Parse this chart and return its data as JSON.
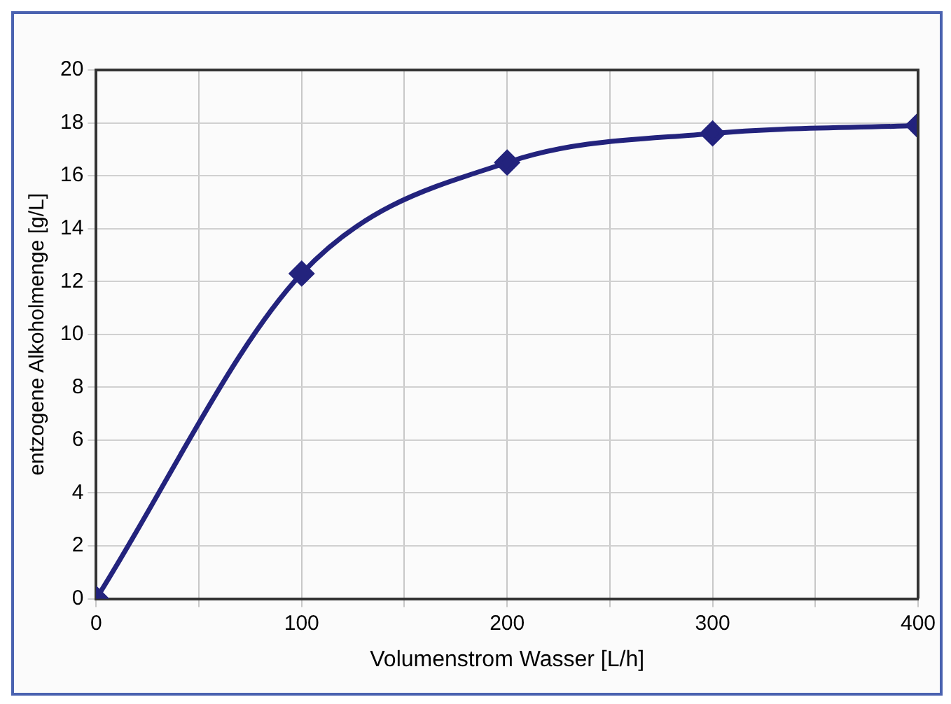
{
  "chart_data": {
    "type": "line",
    "xlabel": "Volumenstrom Wasser [L/h]",
    "ylabel": "entzogene Alkoholmenge [g/L]",
    "x": [
      0,
      100,
      200,
      300,
      400
    ],
    "series": [
      {
        "color": "#23237d",
        "values": [
          0,
          12.3,
          16.5,
          17.6,
          17.9
        ]
      }
    ],
    "xlim": [
      0,
      400
    ],
    "xticks": [
      0,
      {
        "value": 50,
        "label": null
      },
      100,
      {
        "value": 150,
        "label": null
      },
      200,
      {
        "value": 250,
        "label": null
      },
      300,
      {
        "value": 350,
        "label": null
      },
      400
    ],
    "ylim": [
      0,
      20
    ],
    "yticks": [
      0,
      2,
      4,
      6,
      8,
      10,
      12,
      14,
      16,
      18,
      20
    ],
    "grid": true,
    "legend": false,
    "marker": "diamond",
    "line_style": "solid"
  }
}
